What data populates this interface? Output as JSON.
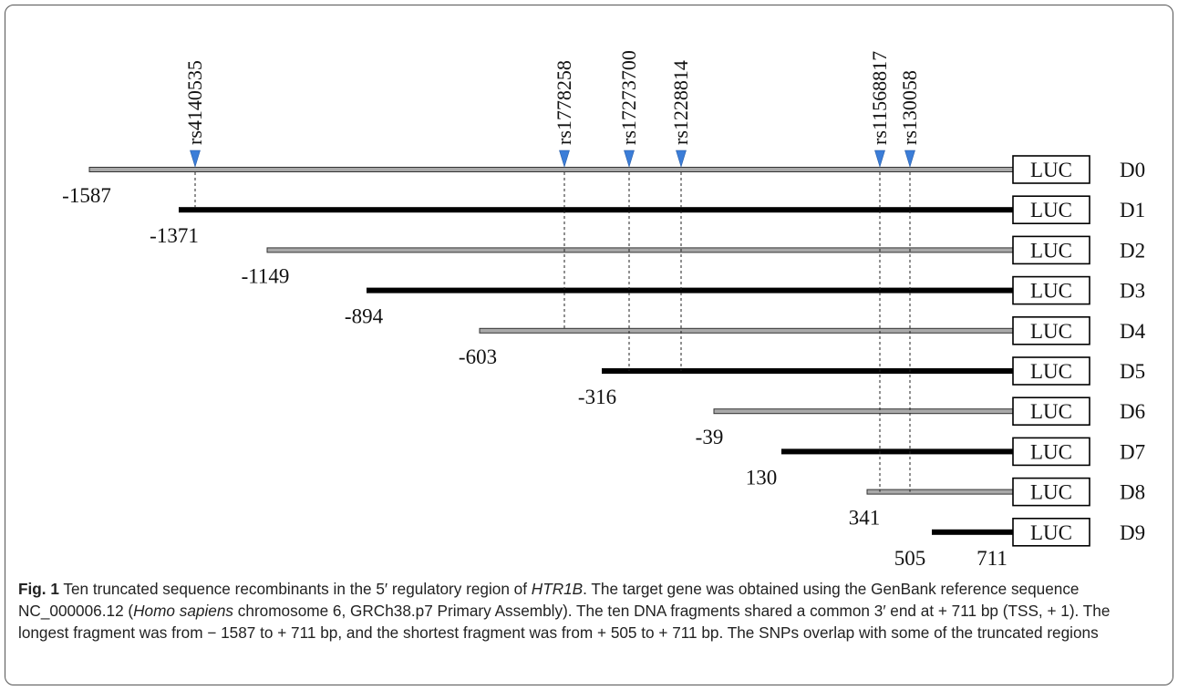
{
  "fragments": [
    {
      "name": "D0",
      "start": -1587,
      "start_label": "-1587",
      "style": "thin"
    },
    {
      "name": "D1",
      "start": -1371,
      "start_label": "-1371",
      "style": "thick"
    },
    {
      "name": "D2",
      "start": -1149,
      "start_label": "-1149",
      "style": "thin"
    },
    {
      "name": "D3",
      "start": -894,
      "start_label": "-894",
      "style": "thick"
    },
    {
      "name": "D4",
      "start": -603,
      "start_label": "-603",
      "style": "thin"
    },
    {
      "name": "D5",
      "start": -316,
      "start_label": "-316",
      "style": "thick"
    },
    {
      "name": "D6",
      "start": -39,
      "start_label": "-39",
      "style": "thin"
    },
    {
      "name": "D7",
      "start": 130,
      "start_label": "130",
      "style": "thick"
    },
    {
      "name": "D8",
      "start": 341,
      "start_label": "341",
      "style": "thin"
    },
    {
      "name": "D9",
      "start": 505,
      "start_label": "505",
      "style": "thick"
    }
  ],
  "end_label": "711",
  "reporter_label": "LUC",
  "snps": [
    {
      "id": "rs4140535",
      "drop_to": "D1"
    },
    {
      "id": "rs1778258",
      "drop_to": "D4"
    },
    {
      "id": "rs17273700",
      "drop_to": "D5"
    },
    {
      "id": "rs1228814",
      "drop_to": "D5"
    },
    {
      "id": "rs11568817",
      "drop_to": "D8"
    },
    {
      "id": "rs130058",
      "drop_to": "D8"
    }
  ],
  "colors": {
    "thin_line_fill": "#a9a9a9",
    "thick_line": "#000000",
    "snp_marker": "#3b7dd8",
    "border": "#555555"
  },
  "caption": {
    "label": "Fig. 1",
    "text_before_gene": " Ten truncated sequence recombinants in the 5′ regulatory region of ",
    "gene": "HTR1B",
    "text_part2": ". The target gene was obtained using the GenBank reference sequence NC_000006.12 (",
    "species": "Homo sapiens",
    "text_part3": " chromosome 6, GRCh38.p7 Primary Assembly). The ten DNA fragments shared a common 3′ end at + 711 bp (TSS, + 1). The longest fragment was from − 1587 to + 711 bp, and the shortest fragment was from + 505 to + 711 bp. The SNPs overlap with some of the truncated regions"
  }
}
